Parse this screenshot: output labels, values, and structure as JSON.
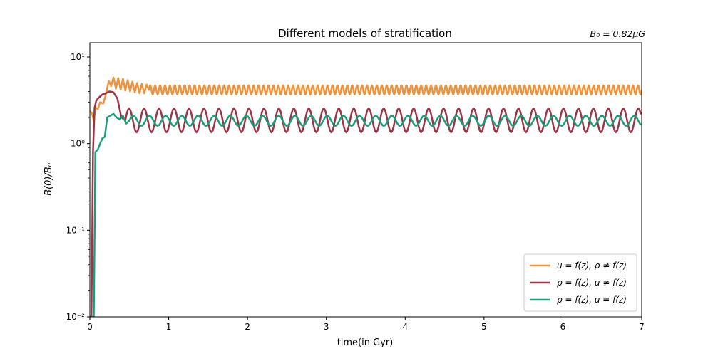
{
  "chart_data": {
    "type": "line",
    "title": "Different models of stratification",
    "annotation": "B₀ = 0.82μG",
    "xlabel": "time(in Gyr)",
    "ylabel": "B(0)/B₀",
    "xlim": [
      0,
      7
    ],
    "ylim": [
      0.01,
      10
    ],
    "yscale": "log",
    "grid": false,
    "legend_position": "lower-right",
    "x_ticks": [
      0,
      1,
      2,
      3,
      4,
      5,
      6,
      7
    ],
    "x_tick_labels": [
      "0",
      "1",
      "2",
      "3",
      "4",
      "5",
      "6",
      "7"
    ],
    "y_ticks": [
      0.01,
      0.1,
      1,
      10
    ],
    "y_tick_labels": [
      "10⁻²",
      "10⁻¹",
      "10⁰",
      "10¹"
    ],
    "series": [
      {
        "name": "u = f(z), ρ ≠ f(z)",
        "color": "#f0923c",
        "x": [
          0.0,
          0.03,
          0.05,
          0.07,
          0.1,
          0.13,
          0.17,
          0.2,
          0.24,
          0.27,
          0.3,
          0.33,
          0.36,
          0.39,
          0.42,
          0.45,
          0.48,
          0.51,
          0.54,
          0.57,
          0.6,
          0.63,
          0.66,
          0.69,
          0.72,
          0.75,
          0.8,
          1.0,
          2.0,
          3.0,
          4.0,
          5.0,
          6.0,
          7.0
        ],
        "y": [
          2.4,
          2.2,
          1.8,
          2.6,
          2.5,
          3.0,
          2.9,
          3.6,
          5.3,
          4.6,
          5.8,
          4.3,
          5.7,
          4.2,
          5.6,
          4.1,
          5.4,
          4.0,
          5.2,
          3.9,
          5.0,
          3.8,
          4.9,
          3.8,
          4.8,
          3.7,
          4.7,
          4.6,
          4.6,
          4.6,
          4.6,
          4.6,
          4.6,
          4.0
        ],
        "oscillation": {
          "from": 0.75,
          "to": 7.0,
          "period": 0.0625,
          "min": 3.7,
          "max": 4.7
        }
      },
      {
        "name": "ρ = f(z), u ≠ f(z)",
        "color": "#9e3446",
        "x": [
          0.0,
          0.02,
          0.04,
          0.06,
          0.08,
          0.1,
          0.13,
          0.16,
          0.2,
          0.25,
          0.3,
          0.35,
          0.4,
          0.45,
          0.5,
          1.0,
          2.0,
          3.0,
          4.0,
          5.0,
          6.0,
          7.0
        ],
        "y": [
          0.01,
          0.01,
          0.8,
          2.6,
          3.1,
          3.3,
          3.5,
          3.7,
          3.8,
          4.0,
          3.9,
          3.3,
          2.0,
          1.6,
          2.2,
          2.5,
          2.4,
          2.4,
          2.4,
          2.4,
          2.4,
          1.5
        ],
        "oscillation": {
          "from": 0.45,
          "to": 7.0,
          "period": 0.19,
          "min": 1.35,
          "max": 2.55
        }
      },
      {
        "name": "ρ = f(z), u = f(z)",
        "color": "#19a07a",
        "x": [
          0.0,
          0.03,
          0.05,
          0.07,
          0.1,
          0.13,
          0.16,
          0.19,
          0.22,
          0.26,
          0.3,
          0.34,
          0.38,
          0.42,
          0.46,
          0.5,
          1.0,
          2.0,
          3.0,
          4.0,
          5.0,
          6.0,
          7.0
        ],
        "y": [
          0.01,
          0.01,
          0.01,
          0.8,
          0.85,
          1.0,
          1.15,
          1.2,
          2.0,
          2.1,
          2.2,
          2.0,
          1.9,
          2.1,
          1.7,
          2.5,
          2.0,
          1.9,
          1.9,
          1.9,
          1.9,
          1.9,
          1.7
        ],
        "oscillation": {
          "from": 0.5,
          "to": 7.0,
          "period": 0.205,
          "min": 1.6,
          "max": 2.1
        }
      }
    ]
  }
}
